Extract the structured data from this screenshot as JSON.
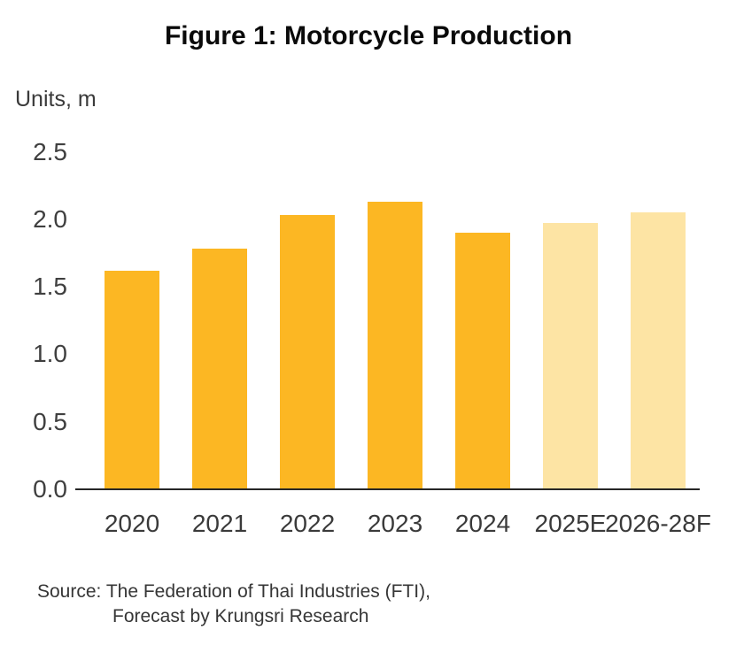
{
  "title": "Figure 1: Motorcycle Production",
  "units_label": "Units, m",
  "source": {
    "line1": "Source: The Federation of Thai Industries (FTI),",
    "line2": "Forecast by Krungsri Research"
  },
  "colors": {
    "actual_bar": "#FCB723",
    "forecast_bar": "#FDE4A4",
    "axis_line": "#262626",
    "tick_text": "#3F3F3F"
  },
  "chart_data": {
    "type": "bar",
    "title": "Figure 1: Motorcycle Production",
    "xlabel": "",
    "ylabel": "Units, m",
    "categories": [
      "2020",
      "2021",
      "2022",
      "2023",
      "2024",
      "2025E",
      "2026-28F"
    ],
    "values": [
      1.62,
      1.78,
      2.03,
      2.13,
      1.9,
      1.97,
      2.05
    ],
    "bar_styles": [
      "actual",
      "actual",
      "actual",
      "actual",
      "actual",
      "forecast",
      "forecast"
    ],
    "yticks": [
      0.0,
      0.5,
      1.0,
      1.5,
      2.0,
      2.5
    ],
    "ytick_labels": [
      "0.0",
      "0.5",
      "1.0",
      "1.5",
      "2.0",
      "2.5"
    ],
    "ylim": [
      0,
      2.5
    ],
    "grid": false,
    "legend": false
  }
}
